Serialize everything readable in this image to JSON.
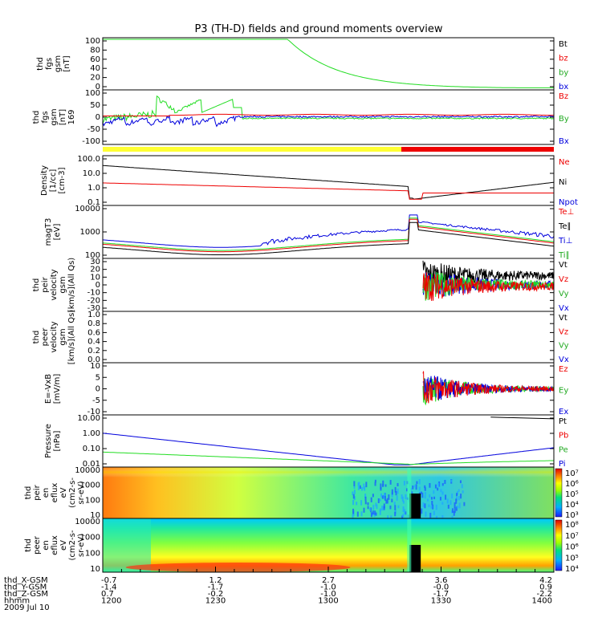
{
  "title": "P3 (TH-D) fields and ground moments overview",
  "colors": {
    "black": "#000000",
    "red": "#ee0000",
    "green": "#22dd22",
    "blue": "#0000dd",
    "yellow": "#ffff33",
    "bar_red": "#ee0000"
  },
  "panels": [
    {
      "id": "fgs",
      "ylabel": [
        "thd",
        "fgs",
        "gsm",
        "[nT]"
      ],
      "ticks": [
        "100",
        "80",
        "60",
        "40",
        "20",
        "0"
      ],
      "legend": [
        {
          "t": "Bt",
          "c": "#000000"
        },
        {
          "t": "bz",
          "c": "#ee0000"
        },
        {
          "t": "by",
          "c": "#22aa22"
        },
        {
          "t": "bx",
          "c": "#0000dd"
        }
      ]
    },
    {
      "id": "fgs2",
      "ylabel": [
        "thd",
        "fgs",
        "gsm",
        "[nT]",
        "169"
      ],
      "ticks": [
        "100",
        "50",
        "0",
        "-50",
        "-100"
      ],
      "legend": [
        {
          "t": "Bz",
          "c": "#ee0000"
        },
        {
          "t": "By",
          "c": "#22aa22"
        },
        {
          "t": "Bx",
          "c": "#0000dd"
        }
      ]
    },
    {
      "id": "dens",
      "ylabel": [
        "Density",
        "[1/cc]",
        "[cm-3]"
      ],
      "ticks": [
        "100.0",
        "10.0",
        "1.0",
        "0.1"
      ],
      "legend": [
        {
          "t": "Ne",
          "c": "#ee0000"
        },
        {
          "t": "Ni",
          "c": "#000000"
        },
        {
          "t": "Npot",
          "c": "#0000dd"
        }
      ]
    },
    {
      "id": "temp",
      "ylabel": [
        "magT3",
        "[eV]"
      ],
      "ticks": [
        "10000",
        "1000",
        "100"
      ],
      "legend": [
        {
          "t": "Te⊥",
          "c": "#ee0000"
        },
        {
          "t": "Te∥",
          "c": "#000000"
        },
        {
          "t": "Ti⊥",
          "c": "#0000dd"
        },
        {
          "t": "Ti∥",
          "c": "#22aa22"
        }
      ]
    },
    {
      "id": "peir",
      "ylabel": [
        "thd",
        "peir",
        "velocity",
        "gsm",
        "[km/s](All Qs)"
      ],
      "ticks": [
        "30",
        "20",
        "10",
        "0",
        "-10",
        "-20",
        "-30"
      ],
      "legend": [
        {
          "t": "Vt",
          "c": "#000000"
        },
        {
          "t": "Vz",
          "c": "#ee0000"
        },
        {
          "t": "Vy",
          "c": "#22aa22"
        },
        {
          "t": "Vx",
          "c": "#0000dd"
        }
      ]
    },
    {
      "id": "peer",
      "ylabel": [
        "thd",
        "peer",
        "velocity",
        "gsm",
        "[km/s](All Qs)"
      ],
      "ticks": [
        "1.0",
        "0.8",
        "0.6",
        "0.4",
        "0.2",
        "0.0"
      ],
      "legend": [
        {
          "t": "Vt",
          "c": "#000000"
        },
        {
          "t": "Vz",
          "c": "#ee0000"
        },
        {
          "t": "Vy",
          "c": "#22aa22"
        },
        {
          "t": "Vx",
          "c": "#0000dd"
        }
      ]
    },
    {
      "id": "efield",
      "ylabel": [
        "E=-VxB",
        "[mV/m]"
      ],
      "ticks": [
        "10",
        "5",
        "0",
        "-5",
        "-10"
      ],
      "legend": [
        {
          "t": "Ez",
          "c": "#ee0000"
        },
        {
          "t": "Ey",
          "c": "#22aa22"
        },
        {
          "t": "Ex",
          "c": "#0000dd"
        }
      ]
    },
    {
      "id": "press",
      "ylabel": [
        "Pressure",
        "[nPa]"
      ],
      "ticks": [
        "10.00",
        "1.00",
        "0.10",
        "0.01"
      ],
      "legend": [
        {
          "t": "Pt",
          "c": "#000000"
        },
        {
          "t": "Pb",
          "c": "#ee0000"
        },
        {
          "t": "Pe",
          "c": "#22aa22"
        },
        {
          "t": "Pi",
          "c": "#0000dd"
        }
      ]
    },
    {
      "id": "ion_spec",
      "ylabel": [
        "thd",
        "peir",
        "en",
        "eflux",
        "eV",
        "(cm2-s-",
        "sr-eV)"
      ],
      "ticks": [
        "10000",
        "1000",
        "100",
        "10"
      ],
      "cbar": [
        "10⁷",
        "10⁶",
        "10⁵",
        "10⁴",
        "10³"
      ]
    },
    {
      "id": "ele_spec",
      "ylabel": [
        "thd",
        "peer",
        "en",
        "eflux",
        "eV",
        "(cm2-s-",
        "sr-eV)"
      ],
      "ticks": [
        "10000",
        "1000",
        "100",
        "10"
      ],
      "cbar": [
        "10⁸",
        "10⁷",
        "10⁶",
        "10⁵",
        "10⁴"
      ]
    }
  ],
  "xaxis": {
    "labels": [
      "thd_X-GSM",
      "thd_Y-GSM",
      "thd_Z-GSM",
      "hhmm",
      "2009 Jul 10"
    ],
    "columns": [
      [
        "-0.7",
        "-1.4",
        "0.7",
        "1200"
      ],
      [
        "1.2",
        "-1.7",
        "-0.2",
        "1230"
      ],
      [
        "2.7",
        "-1.0",
        "-1.0",
        "1300"
      ],
      [
        "3.6",
        "-0.0",
        "-1.7",
        "1330"
      ],
      [
        "4.2",
        "0.9",
        "-2.2",
        "1400"
      ]
    ]
  },
  "chart_data": {
    "type": "line",
    "title": "P3 (TH-D) fields and ground moments overview",
    "x_range_hhmm": [
      "1200",
      "1400"
    ],
    "fgs_ylim": [
      0,
      100
    ],
    "density_ylim": [
      0.05,
      150
    ],
    "temp_ylim": [
      100,
      10000
    ],
    "peir_velocity_ylim": [
      -30,
      30
    ],
    "peer_velocity_ylim": [
      0,
      1
    ],
    "efield_ylim": [
      -10,
      10
    ],
    "pressure_ylim": [
      0.01,
      20
    ],
    "spectrogram_energy_ylim": [
      5,
      20000
    ],
    "status_bar": [
      {
        "from": "1200",
        "to": "1313",
        "color": "yellow"
      },
      {
        "from": "1313",
        "to": "1400",
        "color": "red"
      }
    ]
  }
}
